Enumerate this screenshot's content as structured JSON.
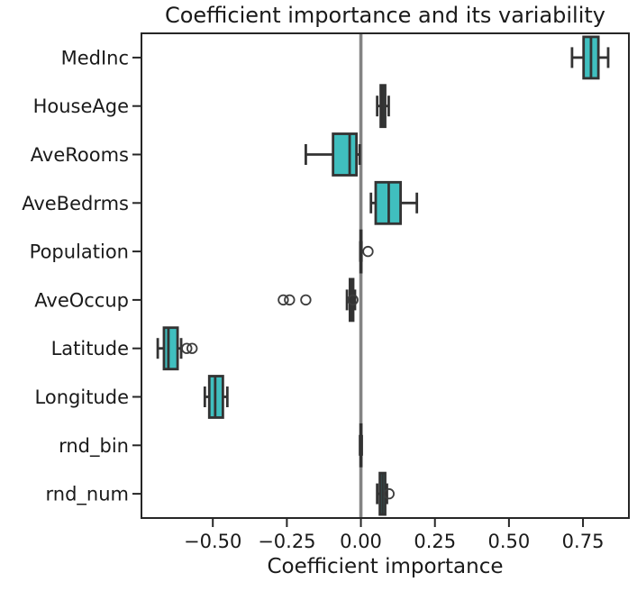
{
  "chart_data": {
    "type": "bar",
    "plot_kind": "boxplot",
    "orientation": "horizontal",
    "title": "Coefficient importance and its variability",
    "xlabel": "Coefficient importance",
    "ylabel": "",
    "grid": false,
    "legend": "none",
    "xlim": [
      -0.741,
      0.905
    ],
    "x_ticks": [
      -0.5,
      -0.25,
      0.0,
      0.25,
      0.5,
      0.75
    ],
    "x_tick_labels": [
      "−0.50",
      "−0.25",
      "0.00",
      "0.25",
      "0.50",
      "0.75"
    ],
    "reference_line_x": 0.0,
    "categories": [
      "MedInc",
      "HouseAge",
      "AveRooms",
      "AveBedrms",
      "Population",
      "AveOccup",
      "Latitude",
      "Longitude",
      "rnd_bin",
      "rnd_num"
    ],
    "series": [
      {
        "name": "MedInc",
        "whislo": 0.713,
        "q1": 0.752,
        "med": 0.777,
        "q3": 0.802,
        "whishi": 0.835,
        "fliers": []
      },
      {
        "name": "HouseAge",
        "whislo": 0.055,
        "q1": 0.067,
        "med": 0.074,
        "q3": 0.082,
        "whishi": 0.094,
        "fliers": []
      },
      {
        "name": "AveRooms",
        "whislo": -0.186,
        "q1": -0.094,
        "med": -0.038,
        "q3": -0.015,
        "whishi": -0.004,
        "fliers": []
      },
      {
        "name": "AveBedrms",
        "whislo": 0.034,
        "q1": 0.05,
        "med": 0.094,
        "q3": 0.134,
        "whishi": 0.189,
        "fliers": []
      },
      {
        "name": "Population",
        "whislo": -0.002,
        "q1": -0.001,
        "med": 0.0,
        "q3": 0.001,
        "whishi": 0.002,
        "fliers": [
          0.024
        ]
      },
      {
        "name": "AveOccup",
        "whislo": -0.047,
        "q1": -0.037,
        "med": -0.03,
        "q3": -0.026,
        "whishi": -0.02,
        "fliers": [
          -0.262,
          -0.241,
          -0.186,
          -0.027
        ]
      },
      {
        "name": "Latitude",
        "whislo": -0.686,
        "q1": -0.665,
        "med": -0.65,
        "q3": -0.619,
        "whishi": -0.607,
        "fliers": [
          -0.588,
          -0.57
        ]
      },
      {
        "name": "Longitude",
        "whislo": -0.527,
        "q1": -0.512,
        "med": -0.492,
        "q3": -0.466,
        "whishi": -0.451,
        "fliers": []
      },
      {
        "name": "rnd_bin",
        "whislo": -0.003,
        "q1": -0.001,
        "med": 0.0,
        "q3": 0.001,
        "whishi": 0.003,
        "fliers": []
      },
      {
        "name": "rnd_num",
        "whislo": 0.055,
        "q1": 0.064,
        "med": 0.073,
        "q3": 0.082,
        "whishi": 0.088,
        "fliers": [
          0.095
        ]
      }
    ],
    "colors": {
      "box_fill": "#40bfbf",
      "box_edge": "#333333",
      "whisker": "#333333",
      "median": "#333333",
      "flier_edge": "#3d3d3d",
      "zero_line": "#848484",
      "spine": "#262626",
      "text": "#1a1a1a",
      "background": "#ffffff"
    }
  }
}
